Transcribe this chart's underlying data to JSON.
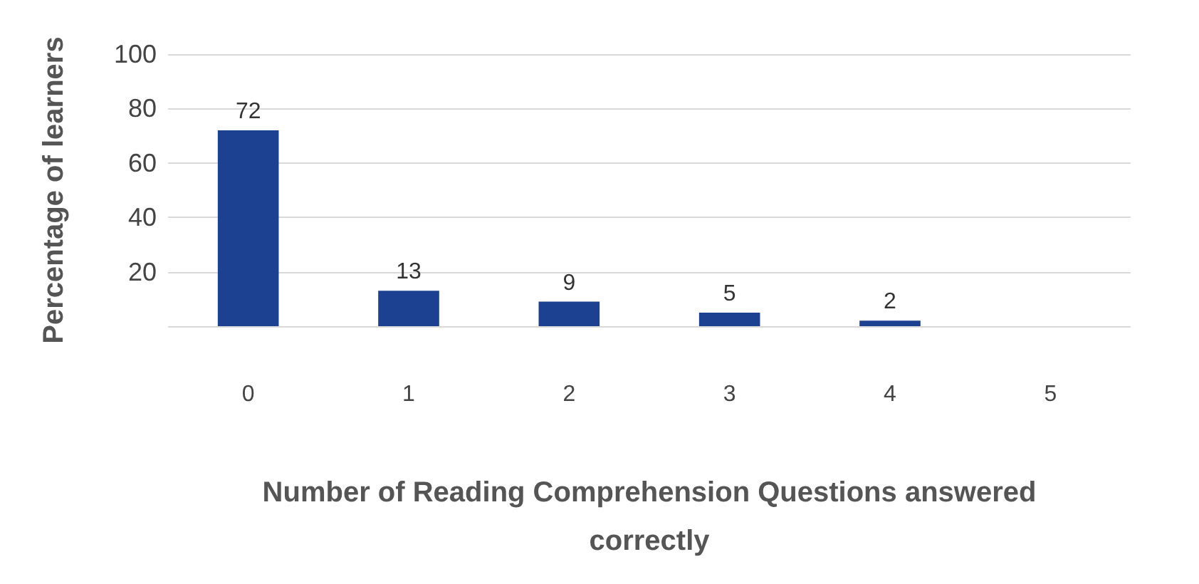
{
  "chart_data": {
    "type": "bar",
    "xlabel": "Number of Reading Comprehension Questions answered\ncorrectly",
    "ylabel": "Percentage of learners",
    "categories": [
      "0",
      "1",
      "2",
      "3",
      "4",
      "5"
    ],
    "values": [
      72,
      13,
      9,
      5,
      2,
      0
    ],
    "value_labels": [
      "72",
      "13",
      "9",
      "5",
      "2",
      null
    ],
    "color": "#1b4190",
    "ylim": [
      0,
      100
    ],
    "yticks": [
      {
        "value": 0,
        "label": null
      },
      20,
      40,
      60,
      80,
      100
    ],
    "grid": true
  }
}
